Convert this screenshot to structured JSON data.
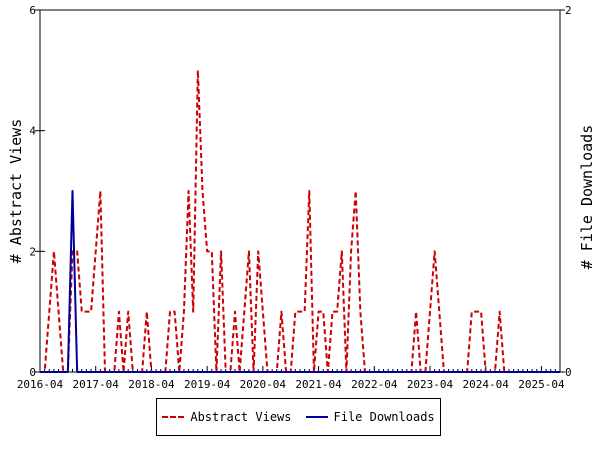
{
  "chart_data": {
    "type": "line",
    "title": "",
    "ylabel_left": "# Abstract Views",
    "ylabel_right": "# File Downloads",
    "ylim_left": [
      0,
      6
    ],
    "ylim_right": [
      0,
      2
    ],
    "yticks_left": [
      0,
      2,
      4,
      6
    ],
    "yticks_right": [
      0,
      2
    ],
    "xlim": [
      "2016-04",
      "2025-08"
    ],
    "xticks": [
      "2016-04",
      "2017-04",
      "2018-04",
      "2019-04",
      "2020-04",
      "2021-04",
      "2022-04",
      "2023-04",
      "2024-04",
      "2025-04"
    ],
    "grid": false,
    "legend_placement": "bottom",
    "series": [
      {
        "name": "Abstract Views",
        "axis": "left",
        "color": "#cc0000",
        "style": "dashed",
        "points": [
          [
            "2016-04",
            0
          ],
          [
            "2016-05",
            0
          ],
          [
            "2016-06",
            1
          ],
          [
            "2016-07",
            2
          ],
          [
            "2016-08",
            1
          ],
          [
            "2016-09",
            0
          ],
          [
            "2016-10",
            0
          ],
          [
            "2016-11",
            2
          ],
          [
            "2016-12",
            2
          ],
          [
            "2017-01",
            1
          ],
          [
            "2017-02",
            1
          ],
          [
            "2017-03",
            1
          ],
          [
            "2017-04",
            2
          ],
          [
            "2017-05",
            3
          ],
          [
            "2017-06",
            0
          ],
          [
            "2017-07",
            0
          ],
          [
            "2017-08",
            0
          ],
          [
            "2017-09",
            1
          ],
          [
            "2017-10",
            0
          ],
          [
            "2017-11",
            1
          ],
          [
            "2017-12",
            0
          ],
          [
            "2018-01",
            0
          ],
          [
            "2018-02",
            0
          ],
          [
            "2018-03",
            1
          ],
          [
            "2018-04",
            0
          ],
          [
            "2018-05",
            0
          ],
          [
            "2018-06",
            0
          ],
          [
            "2018-07",
            0
          ],
          [
            "2018-08",
            1
          ],
          [
            "2018-09",
            1
          ],
          [
            "2018-10",
            0
          ],
          [
            "2018-11",
            1
          ],
          [
            "2018-12",
            3
          ],
          [
            "2019-01",
            1
          ],
          [
            "2019-02",
            5
          ],
          [
            "2019-03",
            3
          ],
          [
            "2019-04",
            2
          ],
          [
            "2019-05",
            2
          ],
          [
            "2019-06",
            0
          ],
          [
            "2019-07",
            2
          ],
          [
            "2019-08",
            0
          ],
          [
            "2019-09",
            0
          ],
          [
            "2019-10",
            1
          ],
          [
            "2019-11",
            0
          ],
          [
            "2019-12",
            1
          ],
          [
            "2020-01",
            2
          ],
          [
            "2020-02",
            0
          ],
          [
            "2020-03",
            2
          ],
          [
            "2020-04",
            1
          ],
          [
            "2020-05",
            0
          ],
          [
            "2020-06",
            0
          ],
          [
            "2020-07",
            0
          ],
          [
            "2020-08",
            1
          ],
          [
            "2020-09",
            0
          ],
          [
            "2020-10",
            0
          ],
          [
            "2020-11",
            1
          ],
          [
            "2020-12",
            1
          ],
          [
            "2021-01",
            1
          ],
          [
            "2021-02",
            3
          ],
          [
            "2021-03",
            0
          ],
          [
            "2021-04",
            1
          ],
          [
            "2021-05",
            1
          ],
          [
            "2021-06",
            0
          ],
          [
            "2021-07",
            1
          ],
          [
            "2021-08",
            1
          ],
          [
            "2021-09",
            2
          ],
          [
            "2021-10",
            0
          ],
          [
            "2021-11",
            2
          ],
          [
            "2021-12",
            3
          ],
          [
            "2022-01",
            1
          ],
          [
            "2022-02",
            0
          ],
          [
            "2022-03",
            0
          ],
          [
            "2022-04",
            0
          ],
          [
            "2022-05",
            0
          ],
          [
            "2022-06",
            0
          ],
          [
            "2022-07",
            0
          ],
          [
            "2022-08",
            0
          ],
          [
            "2022-09",
            0
          ],
          [
            "2022-10",
            0
          ],
          [
            "2022-11",
            0
          ],
          [
            "2022-12",
            0
          ],
          [
            "2023-01",
            1
          ],
          [
            "2023-02",
            0
          ],
          [
            "2023-03",
            0
          ],
          [
            "2023-04",
            1
          ],
          [
            "2023-05",
            2
          ],
          [
            "2023-06",
            1
          ],
          [
            "2023-07",
            0
          ],
          [
            "2023-08",
            0
          ],
          [
            "2023-09",
            0
          ],
          [
            "2023-10",
            0
          ],
          [
            "2023-11",
            0
          ],
          [
            "2023-12",
            0
          ],
          [
            "2024-01",
            1
          ],
          [
            "2024-02",
            1
          ],
          [
            "2024-03",
            1
          ],
          [
            "2024-04",
            0
          ],
          [
            "2024-05",
            0
          ],
          [
            "2024-06",
            0
          ],
          [
            "2024-07",
            1
          ],
          [
            "2024-08",
            0
          ],
          [
            "2024-09",
            0
          ],
          [
            "2024-10",
            0
          ],
          [
            "2024-11",
            0
          ],
          [
            "2024-12",
            0
          ],
          [
            "2025-01",
            0
          ],
          [
            "2025-02",
            0
          ],
          [
            "2025-03",
            0
          ],
          [
            "2025-04",
            0
          ],
          [
            "2025-05",
            0
          ],
          [
            "2025-06",
            0
          ],
          [
            "2025-07",
            0
          ],
          [
            "2025-08",
            0
          ]
        ]
      },
      {
        "name": "File Downloads",
        "axis": "right",
        "color": "#000099",
        "style": "solid",
        "points": [
          [
            "2016-04",
            0
          ],
          [
            "2016-05",
            0
          ],
          [
            "2016-06",
            0
          ],
          [
            "2016-07",
            0
          ],
          [
            "2016-08",
            0
          ],
          [
            "2016-09",
            0
          ],
          [
            "2016-10",
            0
          ],
          [
            "2016-11",
            1
          ],
          [
            "2016-12",
            0
          ],
          [
            "2017-01",
            0
          ],
          [
            "2017-02",
            0
          ],
          [
            "2017-03",
            0
          ],
          [
            "2017-04",
            0
          ],
          [
            "2017-05",
            0
          ],
          [
            "2017-06",
            0
          ],
          [
            "2017-07",
            0
          ],
          [
            "2017-08",
            0
          ],
          [
            "2017-09",
            0
          ],
          [
            "2017-10",
            0
          ],
          [
            "2017-11",
            0
          ],
          [
            "2017-12",
            0
          ],
          [
            "2018-01",
            0
          ],
          [
            "2018-02",
            0
          ],
          [
            "2018-03",
            0
          ],
          [
            "2018-04",
            0
          ],
          [
            "2018-05",
            0
          ],
          [
            "2018-06",
            0
          ],
          [
            "2018-07",
            0
          ],
          [
            "2018-08",
            0
          ],
          [
            "2018-09",
            0
          ],
          [
            "2018-10",
            0
          ],
          [
            "2018-11",
            0
          ],
          [
            "2018-12",
            0
          ],
          [
            "2019-01",
            0
          ],
          [
            "2019-02",
            0
          ],
          [
            "2019-03",
            0
          ],
          [
            "2019-04",
            0
          ],
          [
            "2019-05",
            0
          ],
          [
            "2019-06",
            0
          ],
          [
            "2019-07",
            0
          ],
          [
            "2019-08",
            0
          ],
          [
            "2019-09",
            0
          ],
          [
            "2019-10",
            0
          ],
          [
            "2019-11",
            0
          ],
          [
            "2019-12",
            0
          ],
          [
            "2020-01",
            0
          ],
          [
            "2020-02",
            0
          ],
          [
            "2020-03",
            0
          ],
          [
            "2020-04",
            0
          ],
          [
            "2020-05",
            0
          ],
          [
            "2020-06",
            0
          ],
          [
            "2020-07",
            0
          ],
          [
            "2020-08",
            0
          ],
          [
            "2020-09",
            0
          ],
          [
            "2020-10",
            0
          ],
          [
            "2020-11",
            0
          ],
          [
            "2020-12",
            0
          ],
          [
            "2021-01",
            0
          ],
          [
            "2021-02",
            0
          ],
          [
            "2021-03",
            0
          ],
          [
            "2021-04",
            0
          ],
          [
            "2021-05",
            0
          ],
          [
            "2021-06",
            0
          ],
          [
            "2021-07",
            0
          ],
          [
            "2021-08",
            0
          ],
          [
            "2021-09",
            0
          ],
          [
            "2021-10",
            0
          ],
          [
            "2021-11",
            0
          ],
          [
            "2021-12",
            0
          ],
          [
            "2022-01",
            0
          ],
          [
            "2022-02",
            0
          ],
          [
            "2022-03",
            0
          ],
          [
            "2022-04",
            0
          ],
          [
            "2022-05",
            0
          ],
          [
            "2022-06",
            0
          ],
          [
            "2022-07",
            0
          ],
          [
            "2022-08",
            0
          ],
          [
            "2022-09",
            0
          ],
          [
            "2022-10",
            0
          ],
          [
            "2022-11",
            0
          ],
          [
            "2022-12",
            0
          ],
          [
            "2023-01",
            0
          ],
          [
            "2023-02",
            0
          ],
          [
            "2023-03",
            0
          ],
          [
            "2023-04",
            0
          ],
          [
            "2023-05",
            0
          ],
          [
            "2023-06",
            0
          ],
          [
            "2023-07",
            0
          ],
          [
            "2023-08",
            0
          ],
          [
            "2023-09",
            0
          ],
          [
            "2023-10",
            0
          ],
          [
            "2023-11",
            0
          ],
          [
            "2023-12",
            0
          ],
          [
            "2024-01",
            0
          ],
          [
            "2024-02",
            0
          ],
          [
            "2024-03",
            0
          ],
          [
            "2024-04",
            0
          ],
          [
            "2024-05",
            0
          ],
          [
            "2024-06",
            0
          ],
          [
            "2024-07",
            0
          ],
          [
            "2024-08",
            0
          ],
          [
            "2024-09",
            0
          ],
          [
            "2024-10",
            0
          ],
          [
            "2024-11",
            0
          ],
          [
            "2024-12",
            0
          ],
          [
            "2025-01",
            0
          ],
          [
            "2025-02",
            0
          ],
          [
            "2025-03",
            0
          ],
          [
            "2025-04",
            0
          ],
          [
            "2025-05",
            0
          ],
          [
            "2025-06",
            0
          ],
          [
            "2025-07",
            0
          ],
          [
            "2025-08",
            0
          ]
        ]
      }
    ]
  }
}
